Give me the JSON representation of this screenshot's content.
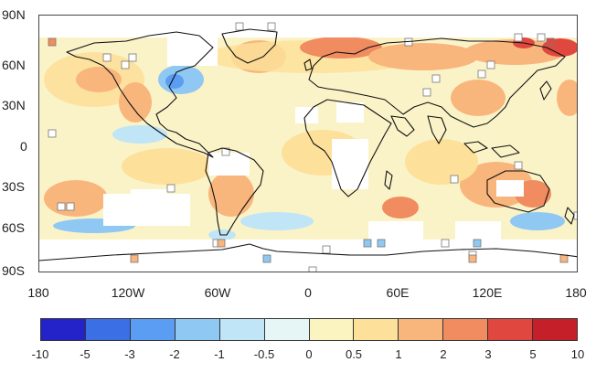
{
  "map": {
    "lat_labels": [
      "90N",
      "60N",
      "30N",
      "0",
      "30S",
      "60S",
      "90S"
    ],
    "lon_labels": [
      "180",
      "120W",
      "60W",
      "0",
      "60E",
      "120E",
      "180"
    ],
    "ocean_fill": "#fbf3c8",
    "coast_color": "#111111",
    "missing_color": "#ffffff",
    "anomaly_color_scheme": "blue-to-red diverging"
  },
  "colorbar": {
    "ticks": [
      "-10",
      "-5",
      "-3",
      "-2",
      "-1",
      "-0.5",
      "0",
      "0.5",
      "1",
      "2",
      "3",
      "5",
      "10"
    ],
    "colors": [
      "#2323c9",
      "#3a6fe6",
      "#5a9df2",
      "#8ec8f3",
      "#bfe5f6",
      "#e6f6f7",
      "#fbf3c0",
      "#fde09a",
      "#f9b67c",
      "#f08c5f",
      "#e0483f",
      "#c5202a"
    ]
  }
}
